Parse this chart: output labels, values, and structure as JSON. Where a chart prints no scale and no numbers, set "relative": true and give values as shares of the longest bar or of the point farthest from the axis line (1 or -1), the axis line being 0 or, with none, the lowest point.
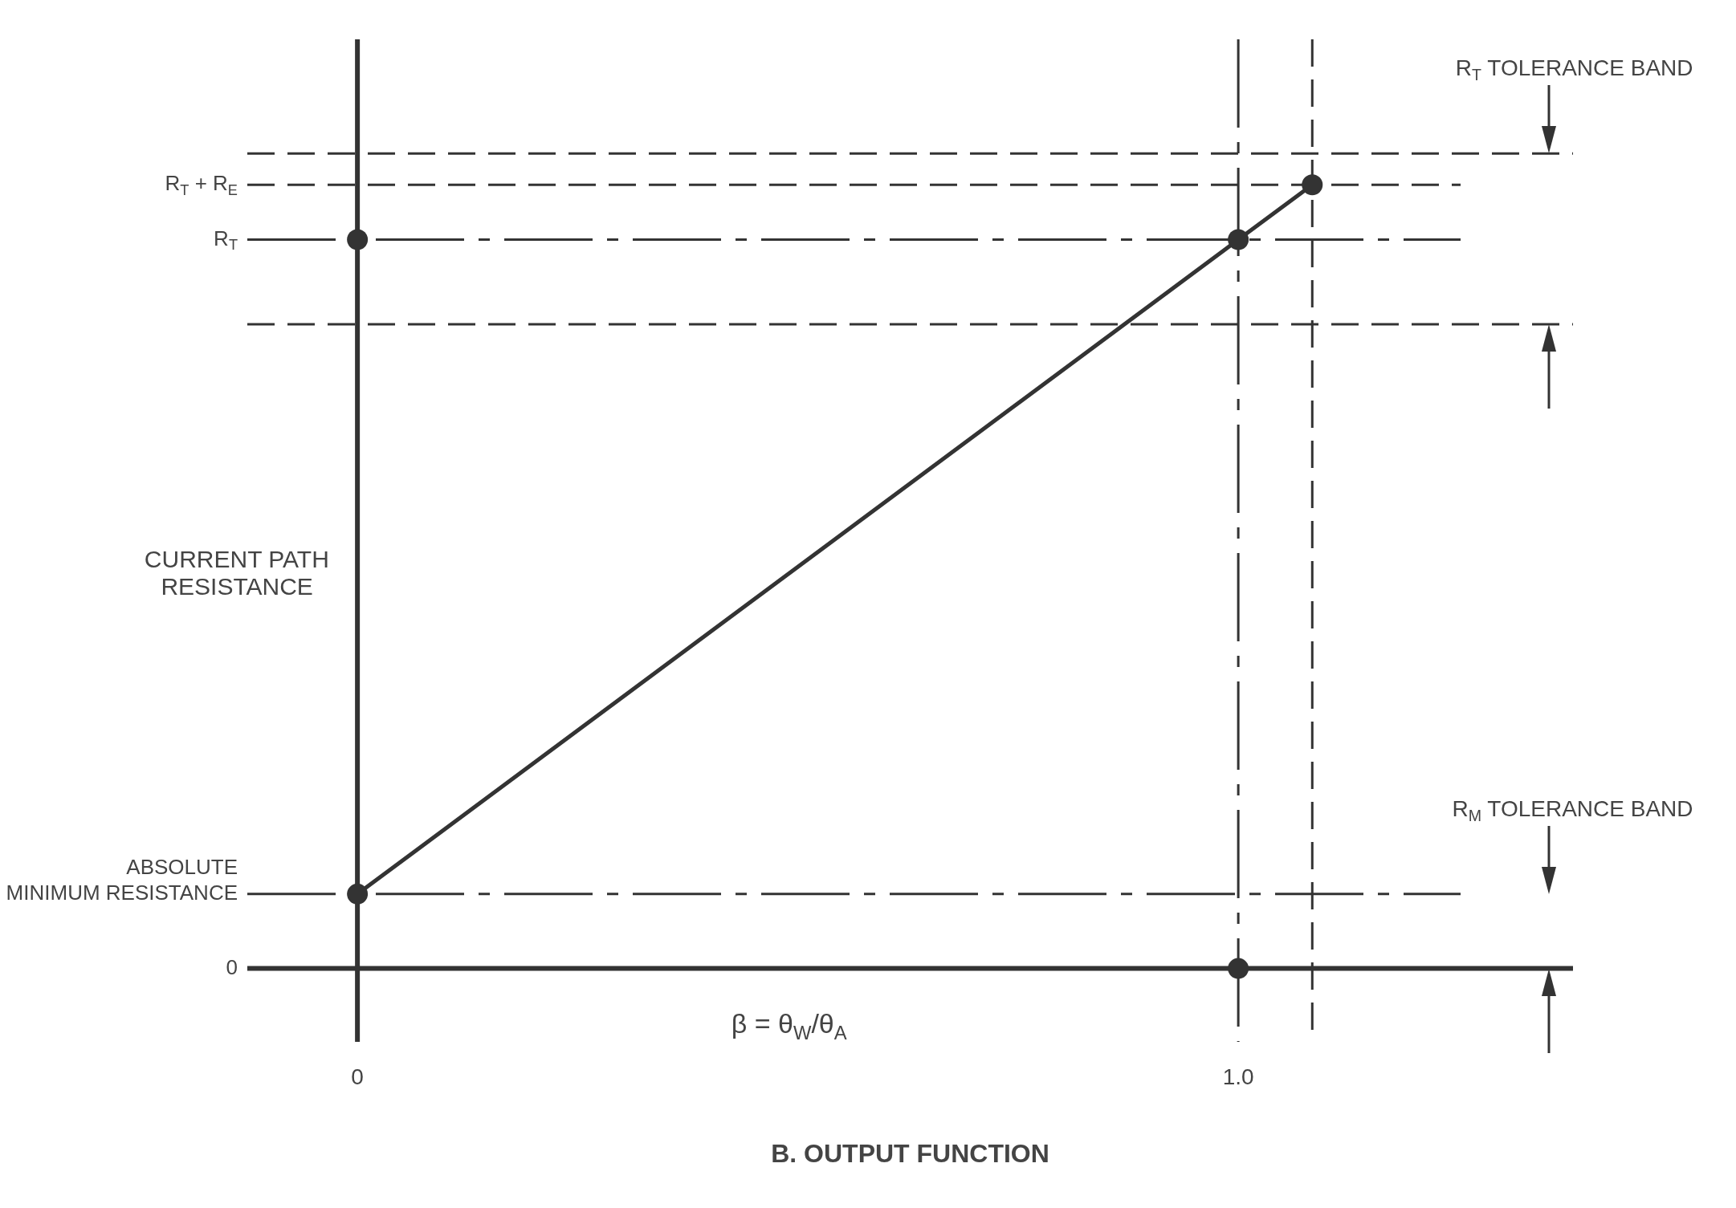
{
  "chart_data": {
    "type": "line",
    "title": "B. OUTPUT FUNCTION",
    "xlabel": "β = θ$_{W}$/θ$_{A}$",
    "ylabel": "CURRENT PATH RESISTANCE",
    "relative": true,
    "marker": "circle",
    "line_style": "solid",
    "legend": false,
    "xlim": [
      -0.125,
      1.38
    ],
    "xticks": [
      0,
      {
        "value": 1,
        "label": "1.0"
      }
    ],
    "series": [
      {
        "color": "#333333",
        "x": [
          0,
          1,
          1.084
        ],
        "values": [
          0.095,
          0.93,
          1.0
        ]
      },
      {
        "type": "scatter",
        "color": "#333333",
        "x": [
          0,
          1
        ],
        "values": [
          0.93,
          0
        ]
      }
    ],
    "ref_lines": [
      {
        "axis": "y",
        "value": 0,
        "label": "0",
        "line_style": "solid",
        "color": "#333333"
      },
      {
        "axis": "y",
        "value": 0.095,
        "label": "ABSOLUTE MINIMUM RESISTANCE",
        "line_style": "dashdot",
        "color": "#333333"
      },
      {
        "axis": "y",
        "value": 0.822,
        "line_style": "dashed",
        "color": "#333333"
      },
      {
        "axis": "y",
        "value": 0.93,
        "label": "R$_{T}$",
        "line_style": "dashdot",
        "color": "#333333"
      },
      {
        "axis": "y",
        "value": 1.0,
        "label": "R$_{T}$ + R$_{E}$",
        "line_style": "dashed",
        "color": "#333333"
      },
      {
        "axis": "y",
        "value": 1.04,
        "line_style": "dashed",
        "color": "#333333"
      },
      {
        "axis": "x",
        "value": 0,
        "line_style": "solid",
        "color": "#333333"
      },
      {
        "axis": "x",
        "value": 1,
        "line_style": "dashdot",
        "color": "#333333"
      },
      {
        "axis": "x",
        "value": 1.084,
        "line_style": "dashed",
        "color": "#333333"
      }
    ],
    "annotations": [
      "R$_{T}$ TOLERANCE BAND",
      "R$_{M}$ TOLERANCE BAND"
    ]
  }
}
